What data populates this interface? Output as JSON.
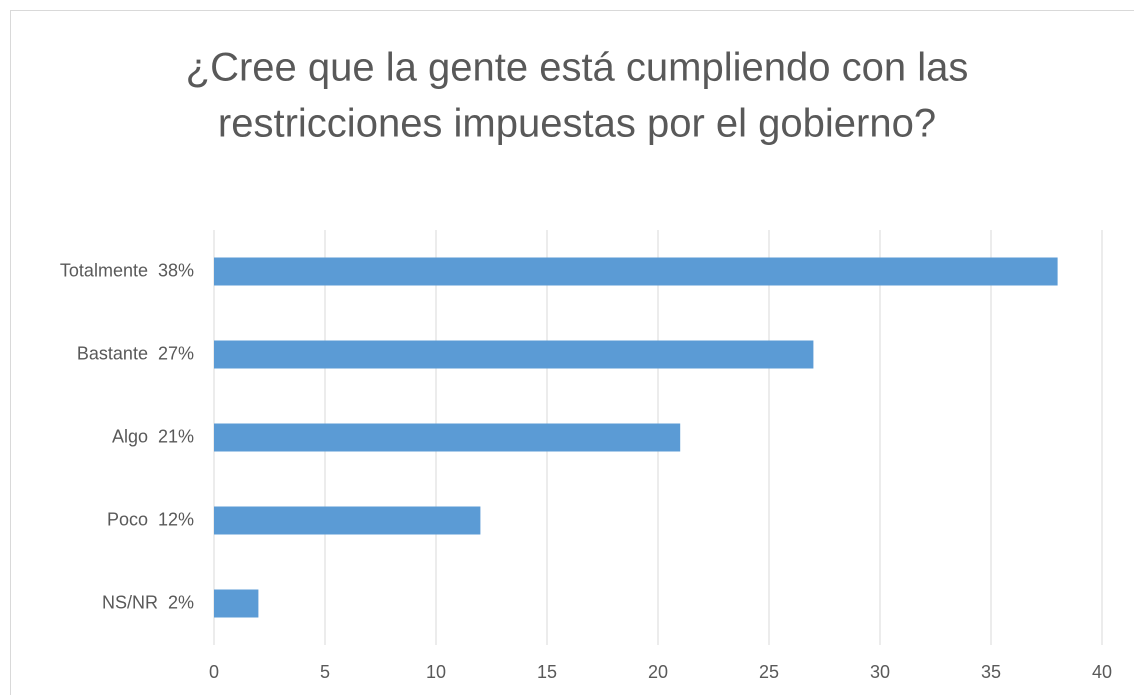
{
  "chart_data": {
    "type": "bar",
    "orientation": "horizontal",
    "title": [
      "¿Cree que la gente está cumpliendo con las",
      "restricciones impuestas por el gobierno?"
    ],
    "categories": [
      "Totalmente  38%",
      "Bastante  27%",
      "Algo  21%",
      "Poco  12%",
      "NS/NR  2%"
    ],
    "values": [
      38,
      27,
      21,
      12,
      2
    ],
    "color": "#5b9bd5",
    "xlim": [
      0,
      40
    ],
    "xticks": [
      0,
      5,
      10,
      15,
      20,
      25,
      30,
      35,
      40
    ],
    "grid": true
  }
}
